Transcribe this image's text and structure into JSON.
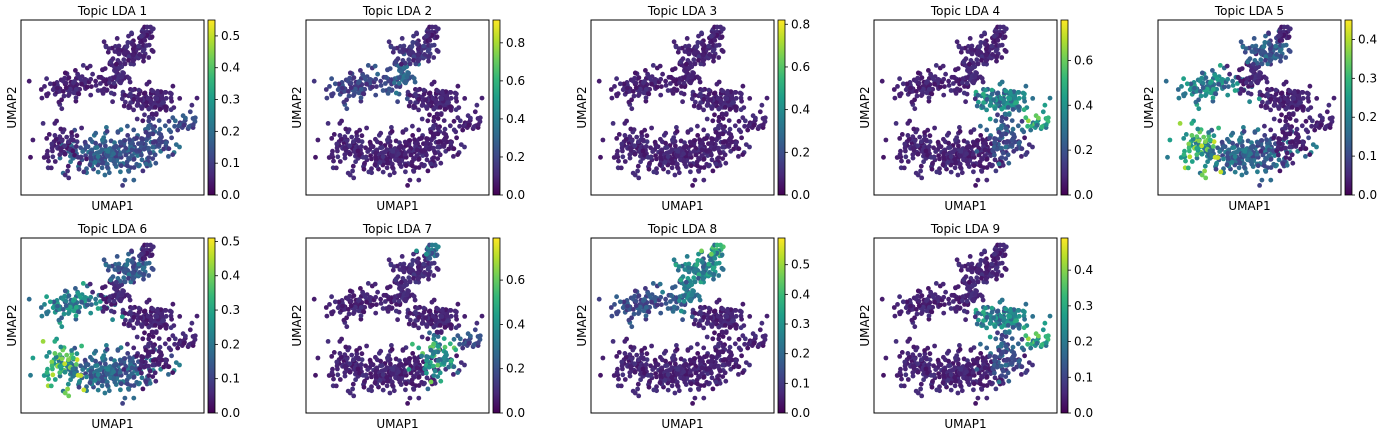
{
  "chart_data": [
    {
      "type": "scatter",
      "title": "Topic LDA 1",
      "xlabel": "UMAP1",
      "ylabel": "UMAP2",
      "colorbar": {
        "colormap": "viridis",
        "ticks": [
          0.0,
          0.1,
          0.2,
          0.3,
          0.4,
          0.5
        ],
        "tick_labels": [
          "0.0",
          "0.1",
          "0.2",
          "0.3",
          "0.4",
          "0.5"
        ],
        "range": [
          0.0,
          0.55
        ]
      },
      "high_region": "lower-center",
      "grid": false,
      "legend": "colorbar-right"
    },
    {
      "type": "scatter",
      "title": "Topic LDA 2",
      "xlabel": "UMAP1",
      "ylabel": "UMAP2",
      "colorbar": {
        "colormap": "viridis",
        "ticks": [
          0.0,
          0.2,
          0.4,
          0.6,
          0.8
        ],
        "tick_labels": [
          "0.0",
          "0.2",
          "0.4",
          "0.6",
          "0.8"
        ],
        "range": [
          0.0,
          0.92
        ]
      },
      "high_region": "upper-left",
      "grid": false,
      "legend": "colorbar-right"
    },
    {
      "type": "scatter",
      "title": "Topic LDA 3",
      "xlabel": "UMAP1",
      "ylabel": "UMAP2",
      "colorbar": {
        "colormap": "viridis",
        "ticks": [
          0.0,
          0.2,
          0.4,
          0.6,
          0.8
        ],
        "tick_labels": [
          "0.0",
          "0.2",
          "0.4",
          "0.6",
          "0.8"
        ],
        "range": [
          0.0,
          0.82
        ]
      },
      "high_region": "center",
      "grid": false,
      "legend": "colorbar-right"
    },
    {
      "type": "scatter",
      "title": "Topic LDA 4",
      "xlabel": "UMAP1",
      "ylabel": "UMAP2",
      "colorbar": {
        "colormap": "viridis",
        "ticks": [
          0.0,
          0.2,
          0.4,
          0.6
        ],
        "tick_labels": [
          "0.0",
          "0.2",
          "0.4",
          "0.6"
        ],
        "range": [
          0.0,
          0.78
        ]
      },
      "high_region": "right-arm",
      "grid": false,
      "legend": "colorbar-right"
    },
    {
      "type": "scatter",
      "title": "Topic LDA 5",
      "xlabel": "UMAP1",
      "ylabel": "UMAP2",
      "colorbar": {
        "colormap": "viridis",
        "ticks": [
          0.0,
          0.1,
          0.2,
          0.3,
          0.4
        ],
        "tick_labels": [
          "0.0",
          "0.1",
          "0.2",
          "0.3",
          "0.4"
        ],
        "range": [
          0.0,
          0.45
        ]
      },
      "high_region": "left",
      "grid": false,
      "legend": "colorbar-right"
    },
    {
      "type": "scatter",
      "title": "Topic LDA 6",
      "xlabel": "UMAP1",
      "ylabel": "UMAP2",
      "colorbar": {
        "colormap": "viridis",
        "ticks": [
          0.0,
          0.1,
          0.2,
          0.3,
          0.4,
          0.5
        ],
        "tick_labels": [
          "0.0",
          "0.1",
          "0.2",
          "0.3",
          "0.4",
          "0.5"
        ],
        "range": [
          0.0,
          0.51
        ]
      },
      "high_region": "left",
      "grid": false,
      "legend": "colorbar-right"
    },
    {
      "type": "scatter",
      "title": "Topic LDA 7",
      "xlabel": "UMAP1",
      "ylabel": "UMAP2",
      "colorbar": {
        "colormap": "viridis",
        "ticks": [
          0.0,
          0.2,
          0.4,
          0.6
        ],
        "tick_labels": [
          "0.0",
          "0.2",
          "0.4",
          "0.6"
        ],
        "range": [
          0.0,
          0.79
        ]
      },
      "high_region": "lower-right",
      "grid": false,
      "legend": "colorbar-right"
    },
    {
      "type": "scatter",
      "title": "Topic LDA 8",
      "xlabel": "UMAP1",
      "ylabel": "UMAP2",
      "colorbar": {
        "colormap": "viridis",
        "ticks": [
          0.0,
          0.1,
          0.2,
          0.3,
          0.4,
          0.5
        ],
        "tick_labels": [
          "0.0",
          "0.1",
          "0.2",
          "0.3",
          "0.4",
          "0.5"
        ],
        "range": [
          0.0,
          0.59
        ]
      },
      "high_region": "upper",
      "grid": false,
      "legend": "colorbar-right"
    },
    {
      "type": "scatter",
      "title": "Topic LDA 9",
      "xlabel": "UMAP1",
      "ylabel": "UMAP2",
      "colorbar": {
        "colormap": "viridis",
        "ticks": [
          0.0,
          0.1,
          0.2,
          0.3,
          0.4
        ],
        "tick_labels": [
          "0.0",
          "0.1",
          "0.2",
          "0.3",
          "0.4"
        ],
        "range": [
          0.0,
          0.49
        ]
      },
      "high_region": "right-arm",
      "grid": false,
      "legend": "colorbar-right"
    }
  ],
  "colors": {
    "viridis_low": "#440154",
    "viridis_mid": "#21918c",
    "viridis_high": "#fde725"
  }
}
